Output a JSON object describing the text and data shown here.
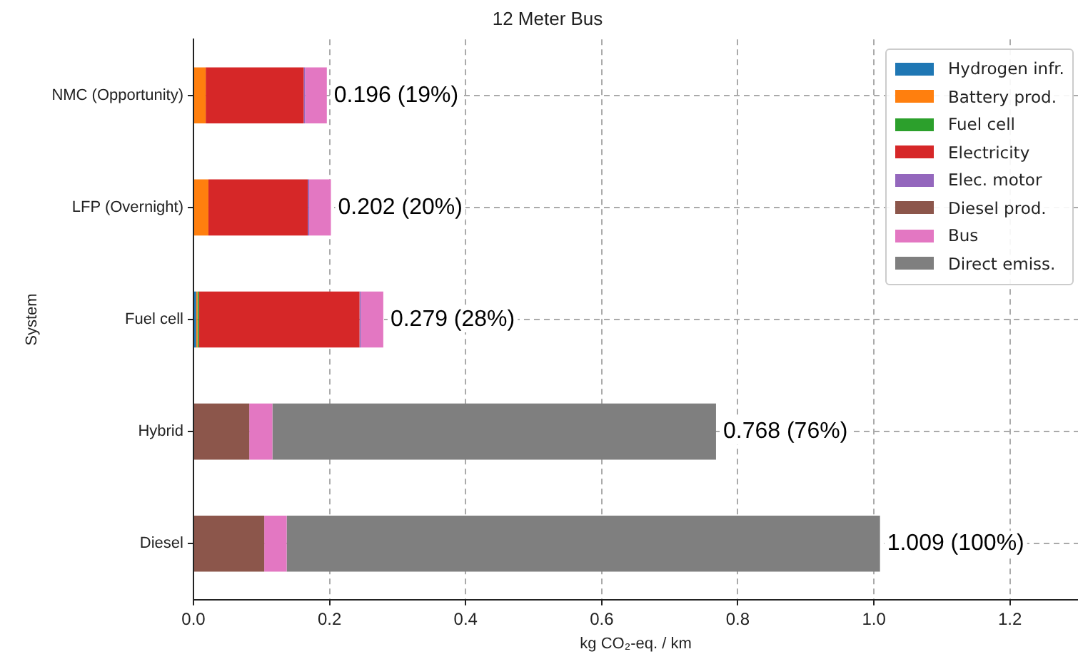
{
  "chart_data": {
    "type": "bar",
    "orientation": "horizontal",
    "stacked": true,
    "title": "12 Meter Bus",
    "xlabel": "kg CO₂-eq. / km",
    "ylabel": "System",
    "categories": [
      "NMC (Opportunity)",
      "LFP (Overnight)",
      "Fuel cell",
      "Hybrid",
      "Diesel"
    ],
    "series": [
      {
        "name": "Hydrogen infr.",
        "color": "#1f77b4",
        "values": [
          0,
          0,
          0.004,
          0,
          0
        ]
      },
      {
        "name": "Battery prod.",
        "color": "#ff7f0e",
        "values": [
          0.018,
          0.022,
          0.002,
          0,
          0
        ]
      },
      {
        "name": "Fuel cell",
        "color": "#2ca02c",
        "values": [
          0,
          0,
          0.002,
          0,
          0
        ]
      },
      {
        "name": "Electricity",
        "color": "#d62728",
        "values": [
          0.144,
          0.146,
          0.236,
          0,
          0
        ]
      },
      {
        "name": "Elec. motor",
        "color": "#9467bd",
        "values": [
          0.002,
          0.002,
          0.002,
          0,
          0
        ]
      },
      {
        "name": "Diesel prod.",
        "color": "#8c564b",
        "values": [
          0,
          0,
          0,
          0.082,
          0.104
        ]
      },
      {
        "name": "Bus",
        "color": "#e377c2",
        "values": [
          0.032,
          0.032,
          0.033,
          0.034,
          0.033
        ]
      },
      {
        "name": "Direct emiss.",
        "color": "#7f7f7f",
        "values": [
          0,
          0,
          0,
          0.652,
          0.872
        ]
      }
    ],
    "totals": [
      "0.196 (19%)",
      "0.202 (20%)",
      "0.279 (28%)",
      "0.768 (76%)",
      "1.009 (100%)"
    ],
    "xlim": [
      0,
      1.3
    ],
    "xticks": [
      {
        "value": 0,
        "label": "0.0"
      },
      {
        "value": 0.2,
        "label": "0.2"
      },
      {
        "value": 0.4,
        "label": "0.4"
      },
      {
        "value": 0.6,
        "label": "0.6"
      },
      {
        "value": 0.8,
        "label": "0.8"
      },
      {
        "value": 1,
        "label": "1.0"
      },
      {
        "value": 1.2,
        "label": "1.2"
      }
    ],
    "grid": true,
    "legend": "top right"
  }
}
